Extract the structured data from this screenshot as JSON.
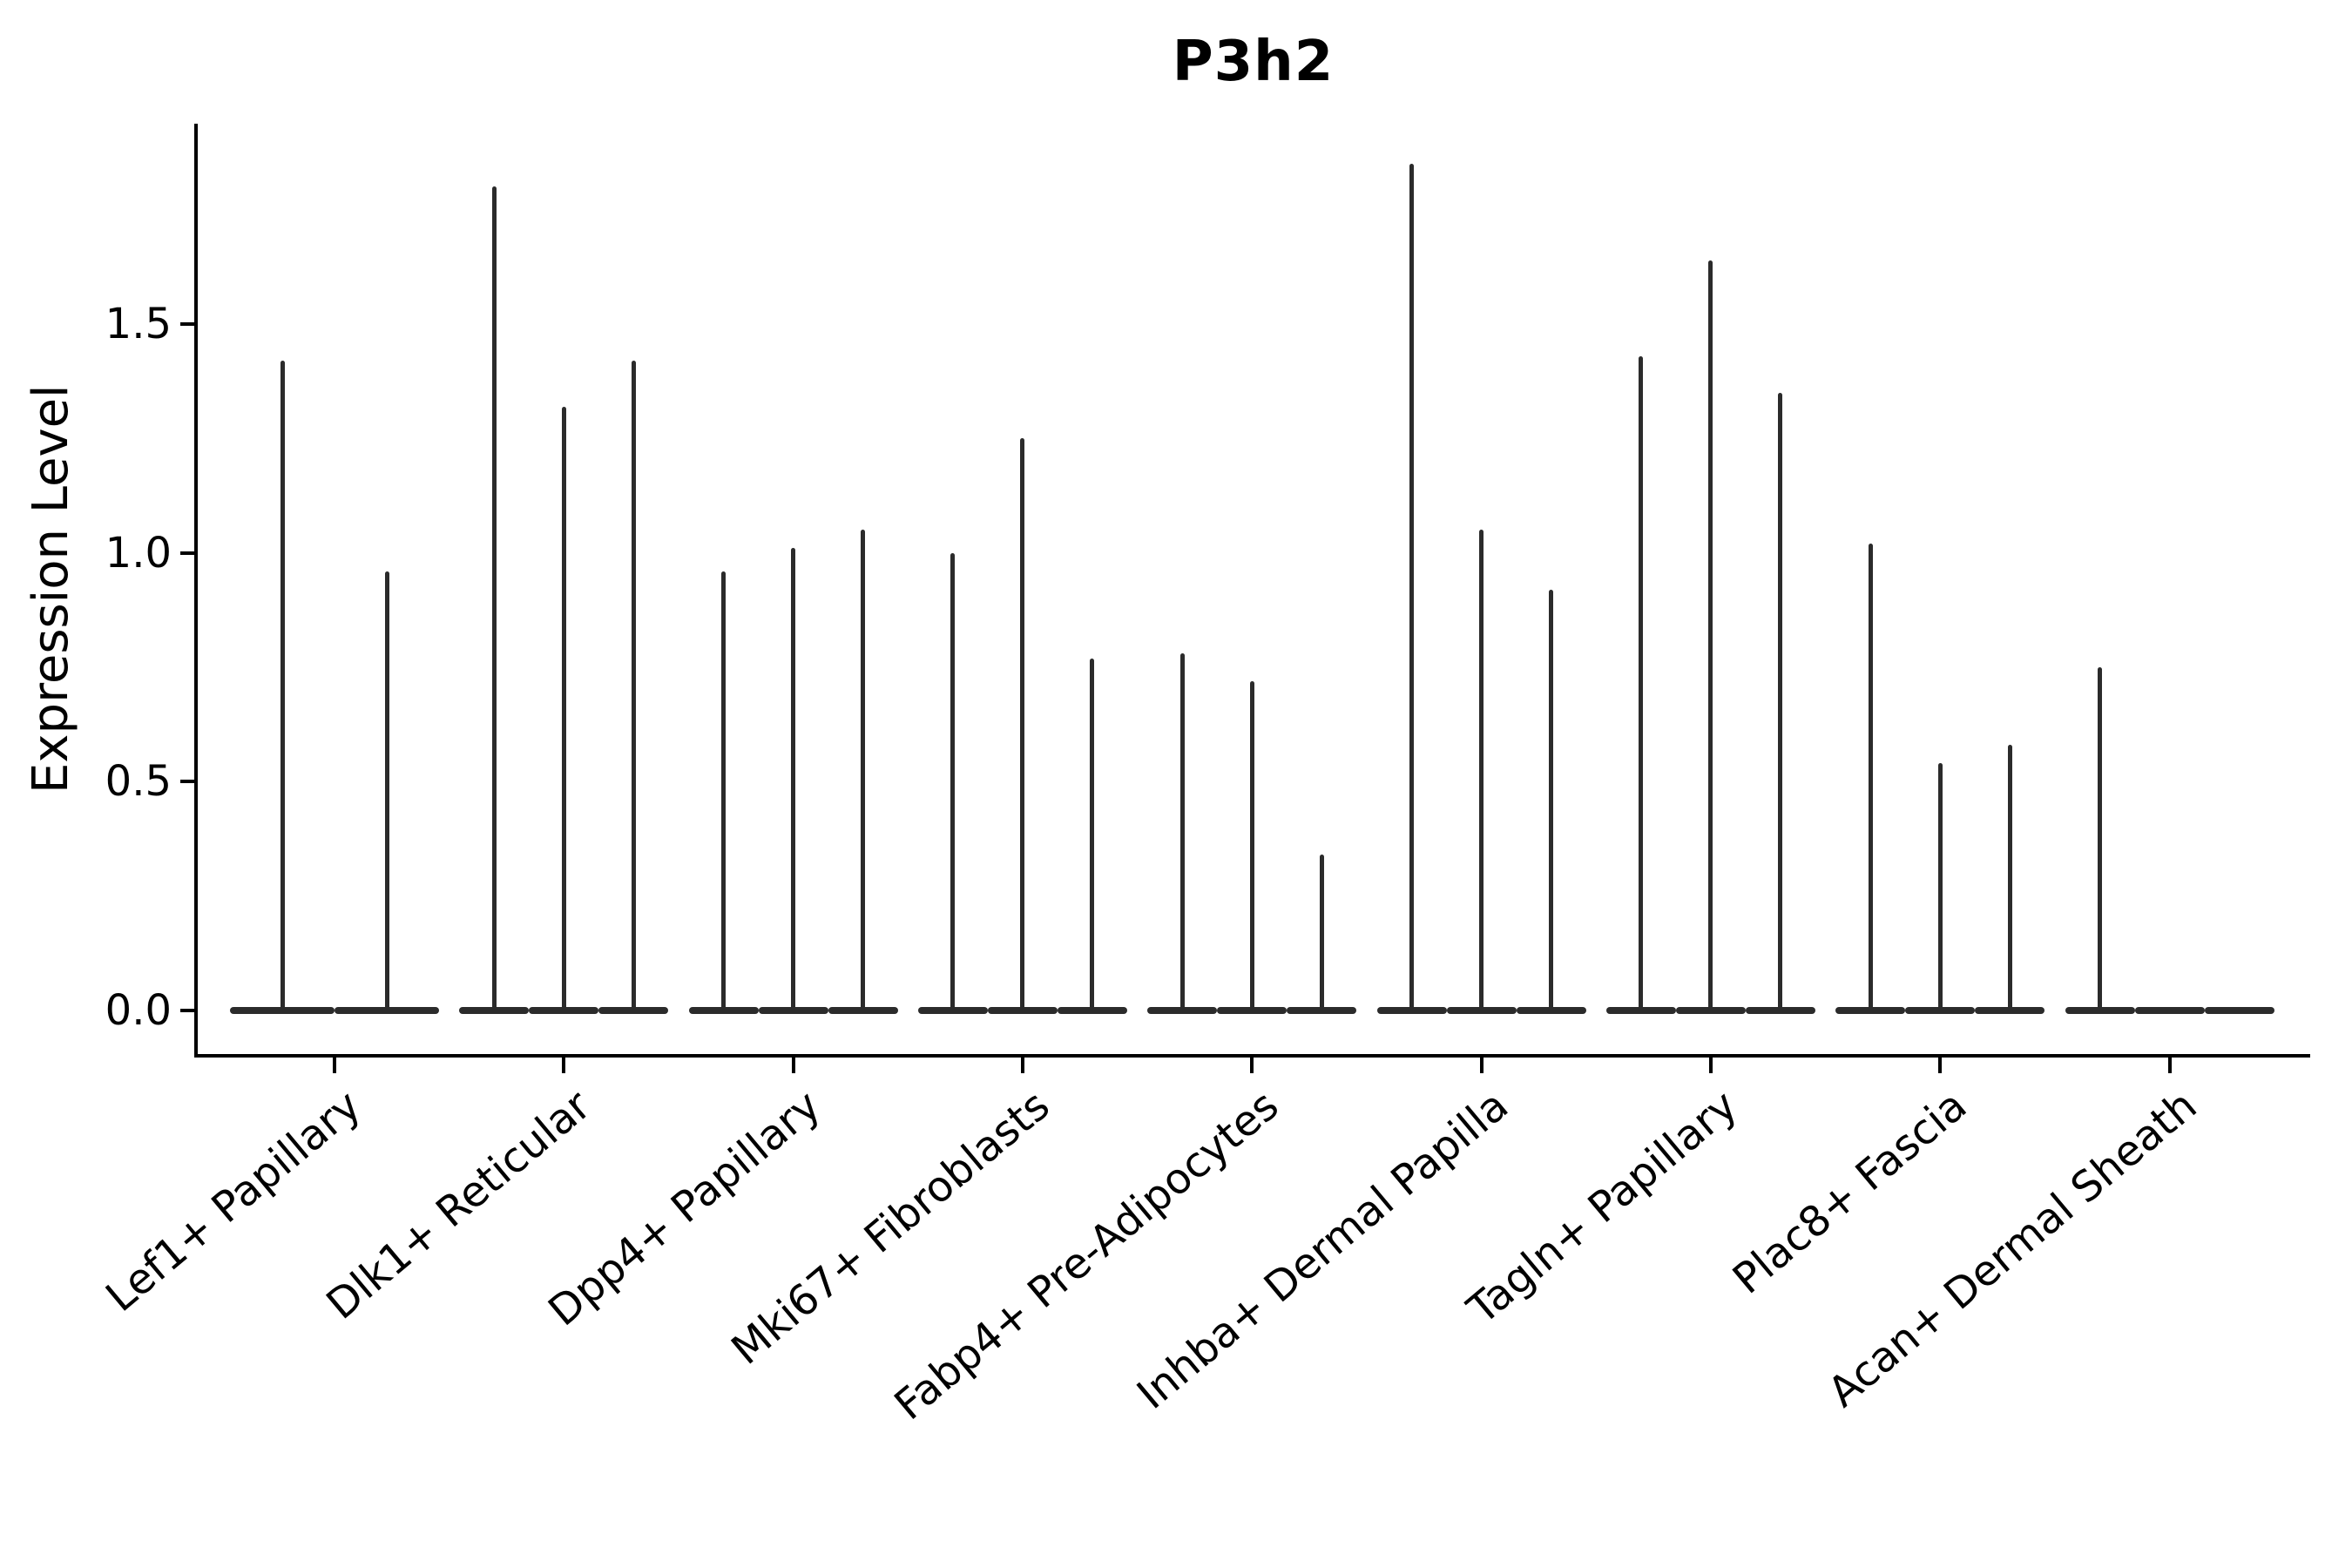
{
  "chart_data": {
    "type": "violin",
    "title": "P3h2",
    "ylabel": "Expression Level",
    "xlabel": "",
    "yticks": [
      0.0,
      0.5,
      1.0,
      1.5
    ],
    "ylim": [
      -0.09,
      1.94
    ],
    "grid": false,
    "legend": "none",
    "background_color": "#ffffff",
    "line_color": "#2b2b2b",
    "axis_color": "#000000",
    "groups": [
      {
        "label": "Lef1+ Papillary",
        "violin_peaks": [
          1.42,
          0.96
        ]
      },
      {
        "label": "Dlk1+ Reticular",
        "violin_peaks": [
          1.8,
          1.32,
          1.42
        ]
      },
      {
        "label": "Dpp4+ Papillary",
        "violin_peaks": [
          0.96,
          1.01,
          1.05
        ]
      },
      {
        "label": "Mki67+ Fibroblasts",
        "violin_peaks": [
          1.0,
          1.25,
          0.77
        ]
      },
      {
        "label": "Fabp4+ Pre-Adipocytes",
        "violin_peaks": [
          0.78,
          0.72,
          0.34
        ]
      },
      {
        "label": "Inhba+ Dermal Papilla",
        "violin_peaks": [
          1.85,
          1.05,
          0.92
        ]
      },
      {
        "label": "Tagln+ Papillary",
        "violin_peaks": [
          1.43,
          1.64,
          1.35
        ]
      },
      {
        "label": "Plac8+ Fascia",
        "violin_peaks": [
          1.02,
          0.54,
          0.58
        ]
      },
      {
        "label": "Acan+ Dermal Sheath",
        "violin_peaks": [
          0.75,
          0.0,
          0.0
        ]
      }
    ],
    "note": "Each violin is a near-zero-width spike: bulk of expression values at 0 with a thin tail reaching the listed peak expression level."
  }
}
